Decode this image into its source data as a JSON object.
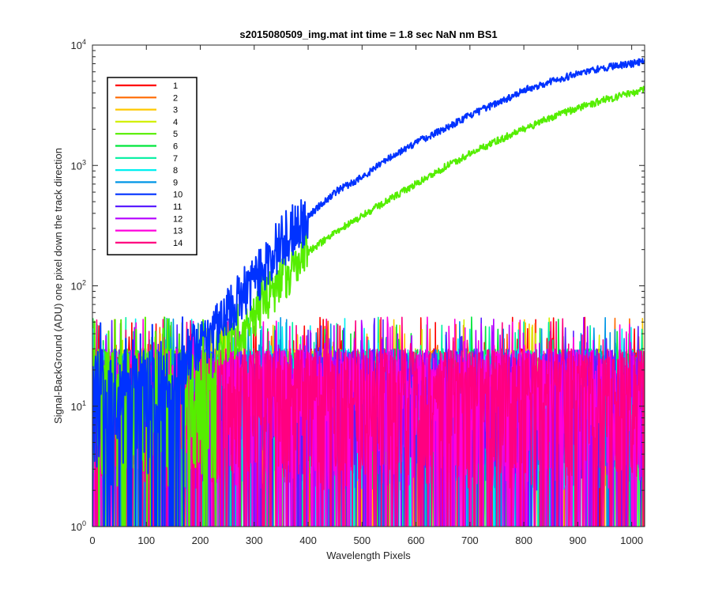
{
  "chart_data": {
    "type": "line",
    "title": "s2015080509_img.mat int time = 1.8 sec  NaN nm BS1",
    "xlabel": "Wavelength Pixels",
    "ylabel": "Signal-BackGround (ADU) one pixel down the track direction",
    "xlim": [
      0,
      1024
    ],
    "ylim": [
      1,
      10000
    ],
    "yscale": "log",
    "grid": false,
    "legend_position": "top-left",
    "x_ticks": [
      "0",
      "100",
      "200",
      "300",
      "400",
      "500",
      "600",
      "700",
      "800",
      "900",
      "1000"
    ],
    "y_ticks": [
      {
        "value": 1,
        "base": "10",
        "exp": "0"
      },
      {
        "value": 10,
        "base": "10",
        "exp": "1"
      },
      {
        "value": 100,
        "base": "10",
        "exp": "2"
      },
      {
        "value": 1000,
        "base": "10",
        "exp": "3"
      },
      {
        "value": 10000,
        "base": "10",
        "exp": "4"
      }
    ],
    "series": [
      {
        "name": "1",
        "color": "#ff0000",
        "profile": "noise"
      },
      {
        "name": "2",
        "color": "#ff6a00",
        "profile": "noise"
      },
      {
        "name": "3",
        "color": "#ffc800",
        "profile": "noise"
      },
      {
        "name": "4",
        "color": "#d2f000",
        "profile": "noise"
      },
      {
        "name": "5",
        "color": "#55ee00",
        "profile": "signal",
        "x": [
          230,
          260,
          300,
          350,
          400,
          450,
          500,
          550,
          600,
          650,
          700,
          750,
          800,
          850,
          900,
          950,
          1000,
          1023
        ],
        "values": [
          30,
          40,
          60,
          120,
          190,
          280,
          380,
          520,
          700,
          950,
          1250,
          1600,
          2000,
          2500,
          3000,
          3500,
          4000,
          4300
        ]
      },
      {
        "name": "6",
        "color": "#00e63c",
        "profile": "noise"
      },
      {
        "name": "7",
        "color": "#00f0a0",
        "profile": "noise"
      },
      {
        "name": "8",
        "color": "#00f0f0",
        "profile": "noise"
      },
      {
        "name": "9",
        "color": "#0096e6",
        "profile": "noise"
      },
      {
        "name": "10",
        "color": "#0032ff",
        "profile": "signal",
        "x": [
          170,
          200,
          230,
          260,
          300,
          350,
          400,
          450,
          500,
          550,
          600,
          650,
          700,
          750,
          800,
          850,
          900,
          950,
          1000,
          1023
        ],
        "values": [
          25,
          32,
          45,
          65,
          110,
          230,
          380,
          600,
          800,
          1150,
          1550,
          2000,
          2600,
          3300,
          4200,
          5000,
          5800,
          6500,
          7000,
          7300
        ]
      },
      {
        "name": "11",
        "color": "#5a1eff",
        "profile": "noise"
      },
      {
        "name": "12",
        "color": "#b400ff",
        "profile": "noise"
      },
      {
        "name": "13",
        "color": "#ff00dc",
        "profile": "noise"
      },
      {
        "name": "14",
        "color": "#ff0080",
        "profile": "noise"
      }
    ],
    "noise_profile": {
      "min": 1,
      "typical_max": 30,
      "peak_max": 55
    }
  }
}
